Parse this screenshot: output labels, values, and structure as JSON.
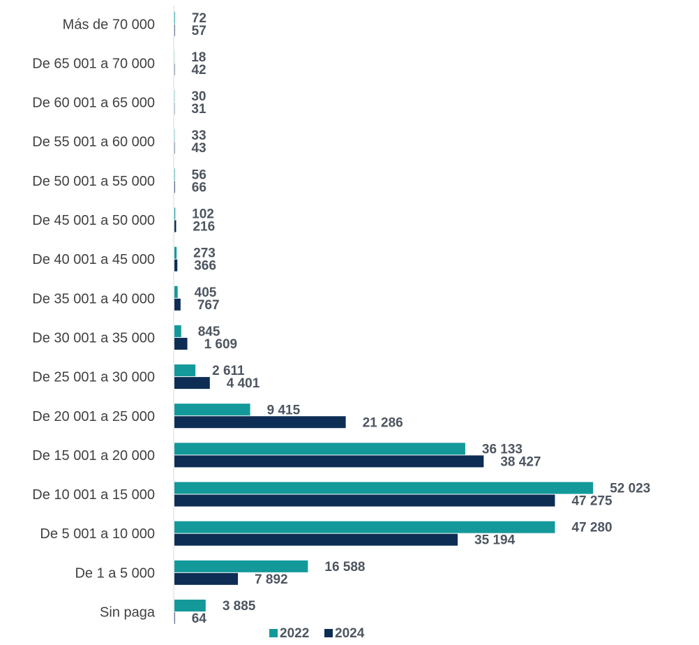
{
  "chart_data": {
    "type": "bar",
    "orientation": "horizontal",
    "categories": [
      "Sin paga",
      "De 1 a 5 000",
      "De 5 001 a 10 000",
      "De 10 001 a 15 000",
      "De 15 001 a 20 000",
      "De 20 001 a 25 000",
      "De 25 001 a 30 000",
      "De 30 001 a 35 000",
      "De 35 001 a 40 000",
      "De 40 001 a 45 000",
      "De 45 001 a 50 000",
      "De 50 001 a 55 000",
      "De 55 001 a 60 000",
      "De 60 001 a 65 000",
      "De 65 001 a 70 000",
      "Más de 70 000"
    ],
    "series": [
      {
        "name": "2022",
        "color": "#14999a",
        "values": [
          3885,
          16588,
          47280,
          52023,
          36133,
          9415,
          2611,
          845,
          405,
          273,
          102,
          56,
          33,
          30,
          18,
          72
        ],
        "labels": [
          "3 885",
          "16 588",
          "47 280",
          "52 023",
          "36 133",
          "9 415",
          "2 611",
          "845",
          "405",
          "273",
          "102",
          "56",
          "33",
          "30",
          "18",
          "72"
        ]
      },
      {
        "name": "2024",
        "color": "#0d2d55",
        "values": [
          64,
          7892,
          35194,
          47275,
          38427,
          21286,
          4401,
          1609,
          767,
          366,
          216,
          66,
          43,
          31,
          42,
          57
        ],
        "labels": [
          "64",
          "7 892",
          "35 194",
          "47 275",
          "38 427",
          "21 286",
          "4 401",
          "1 609",
          "767",
          "366",
          "216",
          "66",
          "43",
          "31",
          "42",
          "57"
        ]
      }
    ],
    "xlim": [
      0,
      60000
    ],
    "grid": false,
    "legend_position": "bottom"
  }
}
